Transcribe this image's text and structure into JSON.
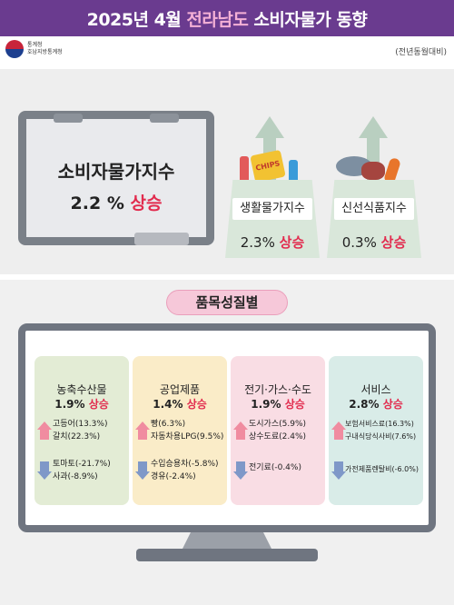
{
  "header": {
    "title_pre": "2025년 4월 ",
    "title_hl": "전라남도",
    "title_post": " 소비자물가 동향",
    "note": "(전년동월대비)"
  },
  "logo": {
    "line1": "통계청",
    "line2": "호남지방통계청"
  },
  "cpi": {
    "title": "소비자물가지수",
    "value": "2.2 %",
    "direction": "상승"
  },
  "living": {
    "label": "생활물가지수",
    "value": "2.3%",
    "direction": "상승"
  },
  "fresh": {
    "label": "신선식품지수",
    "value": "0.3%",
    "direction": "상승"
  },
  "section_title": "품목성질별",
  "categories": [
    {
      "title": "농축수산물",
      "value": "1.9%",
      "direction": "상승",
      "up_items": [
        "고등어(13.3%)",
        "갈치(22.3%)"
      ],
      "down_items": [
        "토마토(-21.7%)",
        "사과(-8.9%)"
      ]
    },
    {
      "title": "공업제품",
      "value": "1.4%",
      "direction": "상승",
      "up_items": [
        "빵(6.3%)",
        "자동차용LPG(9.5%)"
      ],
      "down_items": [
        "수입승용차(-5.8%)",
        "경유(-2.4%)"
      ]
    },
    {
      "title": "전기·가스·수도",
      "value": "1.9%",
      "direction": "상승",
      "up_items": [
        "도시가스(5.9%)",
        "상수도료(2.4%)"
      ],
      "down_items": [
        "전기료(-0.4%)"
      ]
    },
    {
      "title": "서비스",
      "value": "2.8%",
      "direction": "상승",
      "up_items": [
        "보험서비스료(16.3%)",
        "구내식당식사비(7.6%)"
      ],
      "down_items": [
        "가전제품렌탈비(-6.0%)"
      ]
    }
  ],
  "colors": {
    "header_bg": "#6a3b8f",
    "highlight": "#f4b0d6",
    "up": "#e22b4e",
    "card_1": "#e3ecd5",
    "card_2": "#faecc8",
    "card_3": "#f9dde4",
    "card_4": "#d9ece8"
  }
}
